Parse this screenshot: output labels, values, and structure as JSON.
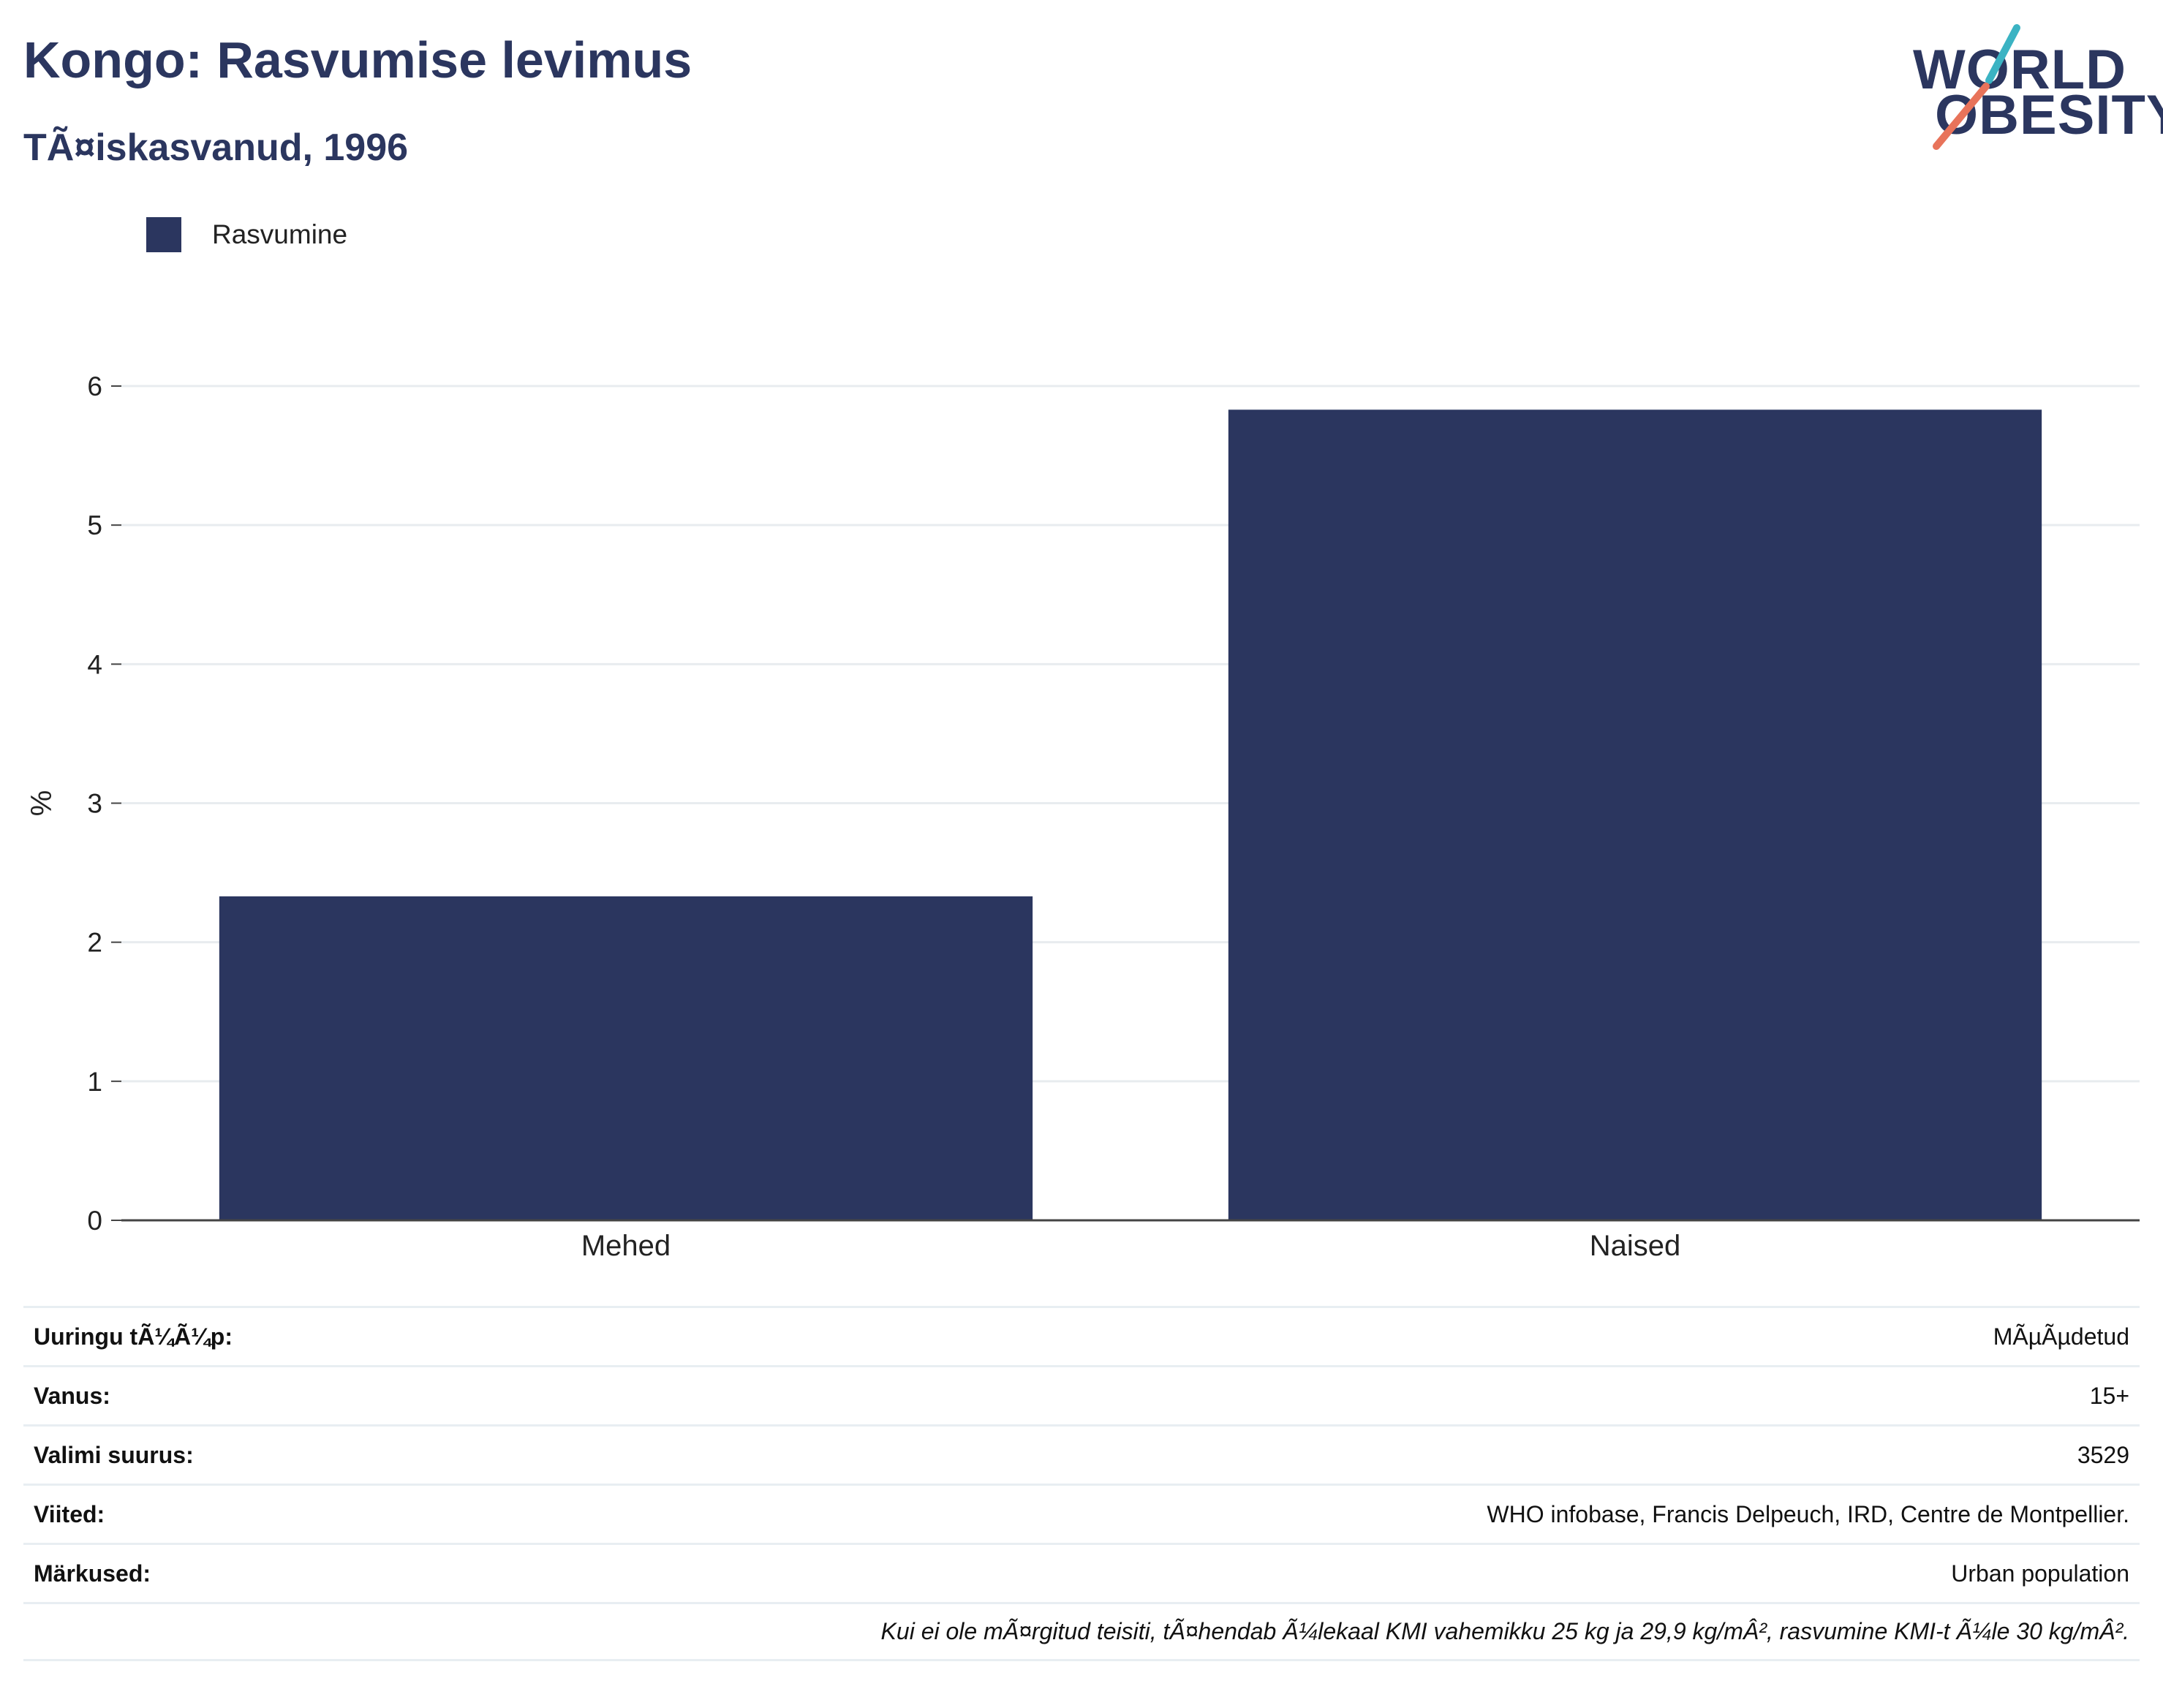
{
  "header": {
    "title": "Kongo: Rasvumise levimus",
    "subtitle": "TÃ¤iskasvanud, 1996"
  },
  "logo": {
    "line1": "WORLD",
    "line2": "OBESITY",
    "colors": {
      "text": "#2b365f",
      "slash_top": "#3bb3c3",
      "slash_bottom": "#e8735a"
    }
  },
  "legend": {
    "items": [
      {
        "label": "Rasvumine",
        "color": "#2b365f"
      }
    ]
  },
  "chart_data": {
    "type": "bar",
    "categories": [
      "Mehed",
      "Naised"
    ],
    "series": [
      {
        "name": "Rasvumine",
        "values": [
          2.33,
          5.83
        ],
        "color": "#2b365f"
      }
    ],
    "ylabel": "%",
    "xlabel": "",
    "ylim": [
      0,
      6
    ],
    "yticks": [
      0,
      1,
      2,
      3,
      4,
      5,
      6
    ],
    "grid": true,
    "legend_position": "top-left"
  },
  "info": {
    "rows": [
      {
        "label": "Uuringu tÃ¼Ã¼p:",
        "value": "MÃµÃµdetud"
      },
      {
        "label": "Vanus:",
        "value": "15+"
      },
      {
        "label": "Valimi suurus:",
        "value": "3529"
      },
      {
        "label": "Viited:",
        "value": "WHO infobase, Francis Delpeuch, IRD, Centre de Montpellier."
      },
      {
        "label": "Märkused:",
        "value": "Urban population"
      }
    ],
    "footnote": "Kui ei ole mÃ¤rgitud teisiti, tÃ¤hendab Ã¼lekaal KMI vahemikku 25 kg ja 29,9 kg/mÂ², rasvumine KMI-t Ã¼le 30 kg/mÂ²."
  }
}
